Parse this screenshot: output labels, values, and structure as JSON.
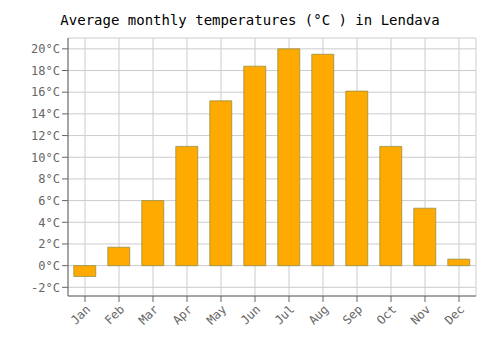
{
  "chart_data": {
    "type": "bar",
    "title": "Average monthly temperatures (°C ) in Lendava",
    "categories": [
      "Jan",
      "Feb",
      "Mar",
      "Apr",
      "May",
      "Jun",
      "Jul",
      "Aug",
      "Sep",
      "Oct",
      "Nov",
      "Dec"
    ],
    "values": [
      -1.0,
      1.7,
      6.0,
      11.0,
      15.2,
      18.4,
      20.0,
      19.5,
      16.1,
      11.0,
      5.3,
      0.6
    ],
    "color": "#FFAA00",
    "ylim": [
      -2.8,
      21.0
    ],
    "yticks": [
      {
        "value": -2,
        "label": "-2°C"
      },
      {
        "value": 0,
        "label": "0°C"
      },
      {
        "value": 2,
        "label": "2°C"
      },
      {
        "value": 4,
        "label": "4°C"
      },
      {
        "value": 6,
        "label": "6°C"
      },
      {
        "value": 8,
        "label": "8°C"
      },
      {
        "value": 10,
        "label": "10°C"
      },
      {
        "value": 12,
        "label": "12°C"
      },
      {
        "value": 14,
        "label": "14°C"
      },
      {
        "value": 16,
        "label": "16°C"
      },
      {
        "value": 18,
        "label": "18°C"
      },
      {
        "value": 20,
        "label": "20°C"
      }
    ],
    "grid": true
  }
}
